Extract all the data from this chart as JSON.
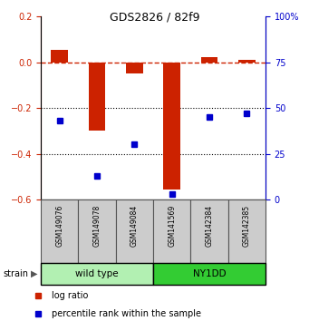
{
  "title": "GDS2826 / 82f9",
  "samples": [
    "GSM149076",
    "GSM149078",
    "GSM149084",
    "GSM141569",
    "GSM142384",
    "GSM142385"
  ],
  "log_ratio": [
    0.055,
    -0.3,
    -0.05,
    -0.555,
    0.022,
    0.01
  ],
  "percentile_rank": [
    43,
    13,
    30,
    3,
    45,
    47
  ],
  "ylim_left": [
    -0.6,
    0.2
  ],
  "ylim_right": [
    0,
    100
  ],
  "strain_groups": [
    {
      "label": "wild type",
      "start": 0,
      "end": 3,
      "color": "#b2f0b2"
    },
    {
      "label": "NY1DD",
      "start": 3,
      "end": 6,
      "color": "#33cc33"
    }
  ],
  "bar_color": "#cc2200",
  "square_color": "#0000cc",
  "hline_color": "#cc2200",
  "dotted_lines": [
    -0.2,
    -0.4
  ],
  "left_tick_color": "#cc2200",
  "right_tick_color": "#0000cc",
  "strain_label": "strain"
}
